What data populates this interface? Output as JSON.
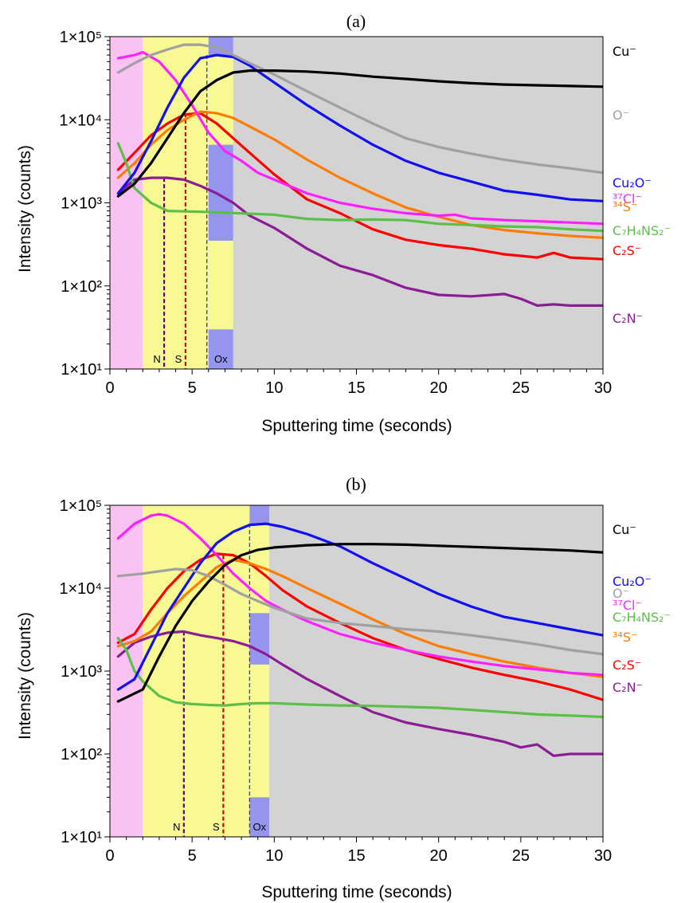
{
  "chart_data": [
    {
      "type": "line",
      "title": "(a)",
      "xlabel": "Sputtering time (seconds)",
      "ylabel": "Intensity (counts)",
      "xlim": [
        0,
        30
      ],
      "ylim": [
        10,
        100000
      ],
      "yscale": "log",
      "x_ticks": [
        "0",
        "5",
        "10",
        "15",
        "20",
        "25",
        "30"
      ],
      "y_ticks": [
        "1×10¹",
        "1×10²",
        "1×10³",
        "1×10⁴",
        "1×10⁵"
      ],
      "regions": [
        {
          "label": "",
          "x0": 0,
          "x1": 2,
          "y0": 10,
          "y1": 100000,
          "color": "#f9c2f2"
        },
        {
          "label": "",
          "x0": 2,
          "x1": 7.5,
          "y0": 10,
          "y1": 100000,
          "color": "#f9f994"
        },
        {
          "label": "",
          "x0": 7.5,
          "x1": 30,
          "y0": 10,
          "y1": 100000,
          "color": "#d3d3d3"
        },
        {
          "label": "",
          "x0": 6,
          "x1": 7.5,
          "y0": 60000,
          "y1": 100000,
          "color": "#9595ee"
        },
        {
          "label": "",
          "x0": 6,
          "x1": 7.5,
          "y0": 350,
          "y1": 5000,
          "color": "#9595ee"
        },
        {
          "label": "Ox",
          "x0": 6,
          "x1": 7.5,
          "y0": 10,
          "y1": 30,
          "color": "#9595ee"
        }
      ],
      "markers": [
        {
          "label": "N",
          "x": 3.3,
          "ytop": 2000,
          "color": "#6a0080"
        },
        {
          "label": "S",
          "x": 4.6,
          "ytop": 12000,
          "color": "#d40000"
        },
        {
          "label": "",
          "x": 5.9,
          "ytop": 60000,
          "color": "#2a2aff"
        }
      ],
      "series": [
        {
          "name": "Cu⁻",
          "color": "#000000",
          "x": [
            0.5,
            1.5,
            2.5,
            3.5,
            4.5,
            5.5,
            6.5,
            7.5,
            8.5,
            10,
            12,
            14,
            16,
            18,
            20,
            22,
            24,
            26,
            28,
            30
          ],
          "values": [
            1200,
            1700,
            3000,
            6000,
            12000,
            22000,
            30000,
            37000,
            39000,
            39000,
            38000,
            36000,
            33000,
            31000,
            29000,
            27500,
            26500,
            26000,
            25500,
            25000
          ]
        },
        {
          "name": "O⁻",
          "color": "#a0a0a0",
          "x": [
            0.5,
            1.5,
            2.5,
            3.5,
            4.5,
            5.5,
            6.5,
            7.5,
            8.5,
            10,
            12,
            14,
            16,
            18,
            20,
            22,
            24,
            26,
            28,
            30
          ],
          "values": [
            37000,
            48000,
            60000,
            70000,
            80000,
            80000,
            74000,
            60000,
            48000,
            35000,
            22000,
            14000,
            9000,
            6000,
            4700,
            3900,
            3300,
            2900,
            2600,
            2300
          ]
        },
        {
          "name": "Cu₂O⁻",
          "color": "#1010f0",
          "x": [
            0.5,
            1.5,
            2.5,
            3.5,
            4.5,
            5.5,
            6.5,
            7.5,
            8.5,
            10,
            12,
            14,
            16,
            18,
            20,
            22,
            24,
            26,
            28,
            30
          ],
          "values": [
            1300,
            2300,
            5500,
            14000,
            32000,
            55000,
            60000,
            57000,
            45000,
            28000,
            15000,
            8500,
            5000,
            3200,
            2300,
            1800,
            1400,
            1250,
            1100,
            1050
          ]
        },
        {
          "name": "³⁷Cl⁻",
          "color": "#ff20ff",
          "x": [
            0.5,
            1.5,
            2,
            3,
            4,
            5,
            6,
            7,
            8,
            9,
            10,
            12,
            14,
            16,
            18,
            20,
            21,
            22,
            24,
            26,
            28,
            30
          ],
          "values": [
            55000,
            60000,
            65000,
            50000,
            30000,
            15000,
            7000,
            4200,
            3200,
            2300,
            1900,
            1300,
            1000,
            850,
            750,
            700,
            720,
            650,
            620,
            600,
            580,
            560
          ]
        },
        {
          "name": "C₇H₄NS₂⁻",
          "color": "#5cc048",
          "x": [
            0.5,
            1,
            1.5,
            2.5,
            3.5,
            4.5,
            5.5,
            7,
            8.5,
            10,
            12,
            14,
            16,
            18,
            20,
            22,
            24,
            26,
            28,
            30
          ],
          "values": [
            5200,
            3000,
            1500,
            1000,
            800,
            790,
            780,
            760,
            740,
            720,
            640,
            620,
            630,
            620,
            560,
            540,
            520,
            510,
            480,
            460
          ]
        },
        {
          "name": "³⁴S⁻",
          "color": "#ff7c00",
          "x": [
            0.5,
            1.5,
            2.5,
            3.5,
            4.5,
            5.5,
            6.5,
            7.5,
            8.5,
            10,
            12,
            14,
            16,
            18,
            20,
            22,
            24,
            26,
            28,
            30
          ],
          "values": [
            2000,
            3000,
            5000,
            7500,
            10000,
            12500,
            12000,
            10500,
            8300,
            5800,
            3300,
            2000,
            1300,
            880,
            680,
            540,
            470,
            430,
            400,
            380
          ]
        },
        {
          "name": "C₂S⁻",
          "color": "#ff0000",
          "x": [
            0.5,
            1.5,
            2.5,
            3.5,
            4.5,
            5.5,
            6.5,
            7.5,
            8.5,
            10,
            12,
            14,
            16,
            18,
            20,
            22,
            24,
            25,
            26,
            27,
            28,
            30
          ],
          "values": [
            2500,
            4000,
            6500,
            9000,
            11500,
            12000,
            9000,
            6000,
            4000,
            2200,
            1100,
            750,
            480,
            360,
            310,
            280,
            240,
            230,
            220,
            250,
            220,
            210
          ]
        },
        {
          "name": "C₂N⁻",
          "color": "#8c1c96",
          "x": [
            0.5,
            1.5,
            2.5,
            3.5,
            4.5,
            5.5,
            6.5,
            7.5,
            8.5,
            10,
            12,
            14,
            16,
            18,
            20,
            22,
            24,
            25,
            26,
            27,
            28,
            30
          ],
          "values": [
            1300,
            1900,
            2000,
            2000,
            1900,
            1600,
            1300,
            1000,
            700,
            500,
            280,
            175,
            135,
            95,
            78,
            75,
            80,
            70,
            58,
            60,
            58,
            58
          ]
        }
      ]
    },
    {
      "type": "line",
      "title": "(b)",
      "xlabel": "Sputtering time (seconds)",
      "ylabel": "Intensity (counts)",
      "xlim": [
        0,
        30
      ],
      "ylim": [
        10,
        100000
      ],
      "yscale": "log",
      "x_ticks": [
        "0",
        "5",
        "10",
        "15",
        "20",
        "25",
        "30"
      ],
      "y_ticks": [
        "1×10¹",
        "1×10²",
        "1×10³",
        "1×10⁴",
        "1×10⁵"
      ],
      "regions": [
        {
          "label": "",
          "x0": 0,
          "x1": 2,
          "y0": 10,
          "y1": 100000,
          "color": "#f9c2f2"
        },
        {
          "label": "",
          "x0": 2,
          "x1": 9.7,
          "y0": 10,
          "y1": 100000,
          "color": "#f9f994"
        },
        {
          "label": "",
          "x0": 9.7,
          "x1": 30,
          "y0": 10,
          "y1": 100000,
          "color": "#d3d3d3"
        },
        {
          "label": "",
          "x0": 8.5,
          "x1": 9.7,
          "y0": 60000,
          "y1": 100000,
          "color": "#9595ee"
        },
        {
          "label": "",
          "x0": 8.5,
          "x1": 9.7,
          "y0": 1200,
          "y1": 5000,
          "color": "#9595ee"
        },
        {
          "label": "Ox",
          "x0": 8.5,
          "x1": 9.7,
          "y0": 10,
          "y1": 30,
          "color": "#9595ee"
        }
      ],
      "markers": [
        {
          "label": "N",
          "x": 4.5,
          "ytop": 3000,
          "color": "#6a0080"
        },
        {
          "label": "S",
          "x": 6.9,
          "ytop": 25000,
          "color": "#d40000"
        },
        {
          "label": "",
          "x": 8.5,
          "ytop": 60000,
          "color": "#2a2aff"
        }
      ],
      "series": [
        {
          "name": "Cu⁻",
          "color": "#000000",
          "x": [
            0.5,
            2,
            3,
            4,
            5,
            6,
            7,
            8,
            9,
            10,
            12,
            14,
            16,
            18,
            20,
            22,
            24,
            26,
            28,
            30
          ],
          "values": [
            430,
            600,
            1500,
            3500,
            7000,
            12000,
            19000,
            25000,
            29000,
            31000,
            33000,
            34000,
            34000,
            33500,
            32500,
            31500,
            30500,
            29500,
            28500,
            27000
          ]
        },
        {
          "name": "O⁻",
          "color": "#a0a0a0",
          "x": [
            0.5,
            2,
            3,
            4,
            5,
            6,
            7,
            8,
            9,
            10,
            12,
            14,
            16,
            18,
            20,
            22,
            24,
            26,
            28,
            30
          ],
          "values": [
            14000,
            15000,
            16000,
            17000,
            16500,
            14000,
            11000,
            8500,
            7000,
            5800,
            4300,
            3800,
            3500,
            3200,
            3000,
            2700,
            2400,
            2100,
            1800,
            1600
          ]
        },
        {
          "name": "Cu₂O⁻",
          "color": "#1010f0",
          "x": [
            0.5,
            1.5,
            2.5,
            3.5,
            4.5,
            5.5,
            6.5,
            7.5,
            8.5,
            9.5,
            10.5,
            12,
            14,
            16,
            18,
            20,
            22,
            24,
            26,
            28,
            30
          ],
          "values": [
            600,
            800,
            2000,
            5000,
            10000,
            20000,
            35000,
            48000,
            58000,
            60000,
            55000,
            45000,
            32000,
            20000,
            13000,
            8500,
            6000,
            4500,
            3800,
            3200,
            2700
          ]
        },
        {
          "name": "³⁷Cl⁻",
          "color": "#ff20ff",
          "x": [
            0.5,
            1.5,
            2.5,
            3,
            3.5,
            4.5,
            5.5,
            6.5,
            7.5,
            8.5,
            9.5,
            10.5,
            12,
            14,
            16,
            18,
            20,
            22,
            24,
            26,
            28,
            30
          ],
          "values": [
            40000,
            60000,
            75000,
            78000,
            75000,
            60000,
            40000,
            25000,
            15000,
            10000,
            7000,
            5500,
            4000,
            2800,
            2200,
            1800,
            1500,
            1300,
            1150,
            1050,
            950,
            900
          ]
        },
        {
          "name": "C₇H₄NS₂⁻",
          "color": "#5cc048",
          "x": [
            0.5,
            1,
            1.5,
            2,
            3,
            4,
            5,
            6,
            7,
            8,
            9,
            10,
            12,
            14,
            16,
            18,
            20,
            22,
            24,
            26,
            28,
            30
          ],
          "values": [
            2500,
            1800,
            1000,
            750,
            500,
            420,
            400,
            390,
            385,
            400,
            410,
            410,
            395,
            385,
            380,
            370,
            360,
            340,
            320,
            300,
            290,
            280
          ]
        },
        {
          "name": "³⁴S⁻",
          "color": "#ff7c00",
          "x": [
            0.5,
            1.5,
            2.5,
            3.5,
            4.5,
            5.5,
            6.5,
            7.5,
            8.5,
            9.5,
            10.5,
            12,
            14,
            16,
            18,
            20,
            22,
            24,
            26,
            28,
            30
          ],
          "values": [
            2000,
            2300,
            3000,
            5000,
            8000,
            12000,
            18000,
            22000,
            20000,
            17000,
            14000,
            10000,
            6500,
            4200,
            2800,
            2000,
            1600,
            1300,
            1100,
            950,
            850
          ]
        },
        {
          "name": "C₂S⁻",
          "color": "#ff0000",
          "x": [
            0.5,
            1.5,
            2.5,
            3.5,
            4.5,
            5.5,
            6.5,
            7.5,
            8.5,
            9.5,
            10.5,
            12,
            14,
            16,
            18,
            20,
            22,
            24,
            26,
            28,
            30
          ],
          "values": [
            2200,
            2800,
            5500,
            10000,
            16000,
            22000,
            26000,
            25000,
            20000,
            14000,
            9500,
            6000,
            3800,
            2500,
            1800,
            1400,
            1100,
            900,
            750,
            600,
            450
          ]
        },
        {
          "name": "C₂N⁻",
          "color": "#8c1c96",
          "x": [
            0.5,
            1.5,
            2.5,
            3.5,
            4.5,
            5.5,
            6.5,
            7.5,
            8.5,
            9.5,
            10.5,
            12,
            14,
            16,
            18,
            20,
            22,
            24,
            25,
            26,
            27,
            28,
            30
          ],
          "values": [
            1500,
            2200,
            2600,
            2900,
            3000,
            2700,
            2500,
            2300,
            2000,
            1600,
            1200,
            800,
            500,
            320,
            240,
            200,
            170,
            140,
            120,
            130,
            95,
            100,
            100
          ]
        }
      ]
    }
  ]
}
